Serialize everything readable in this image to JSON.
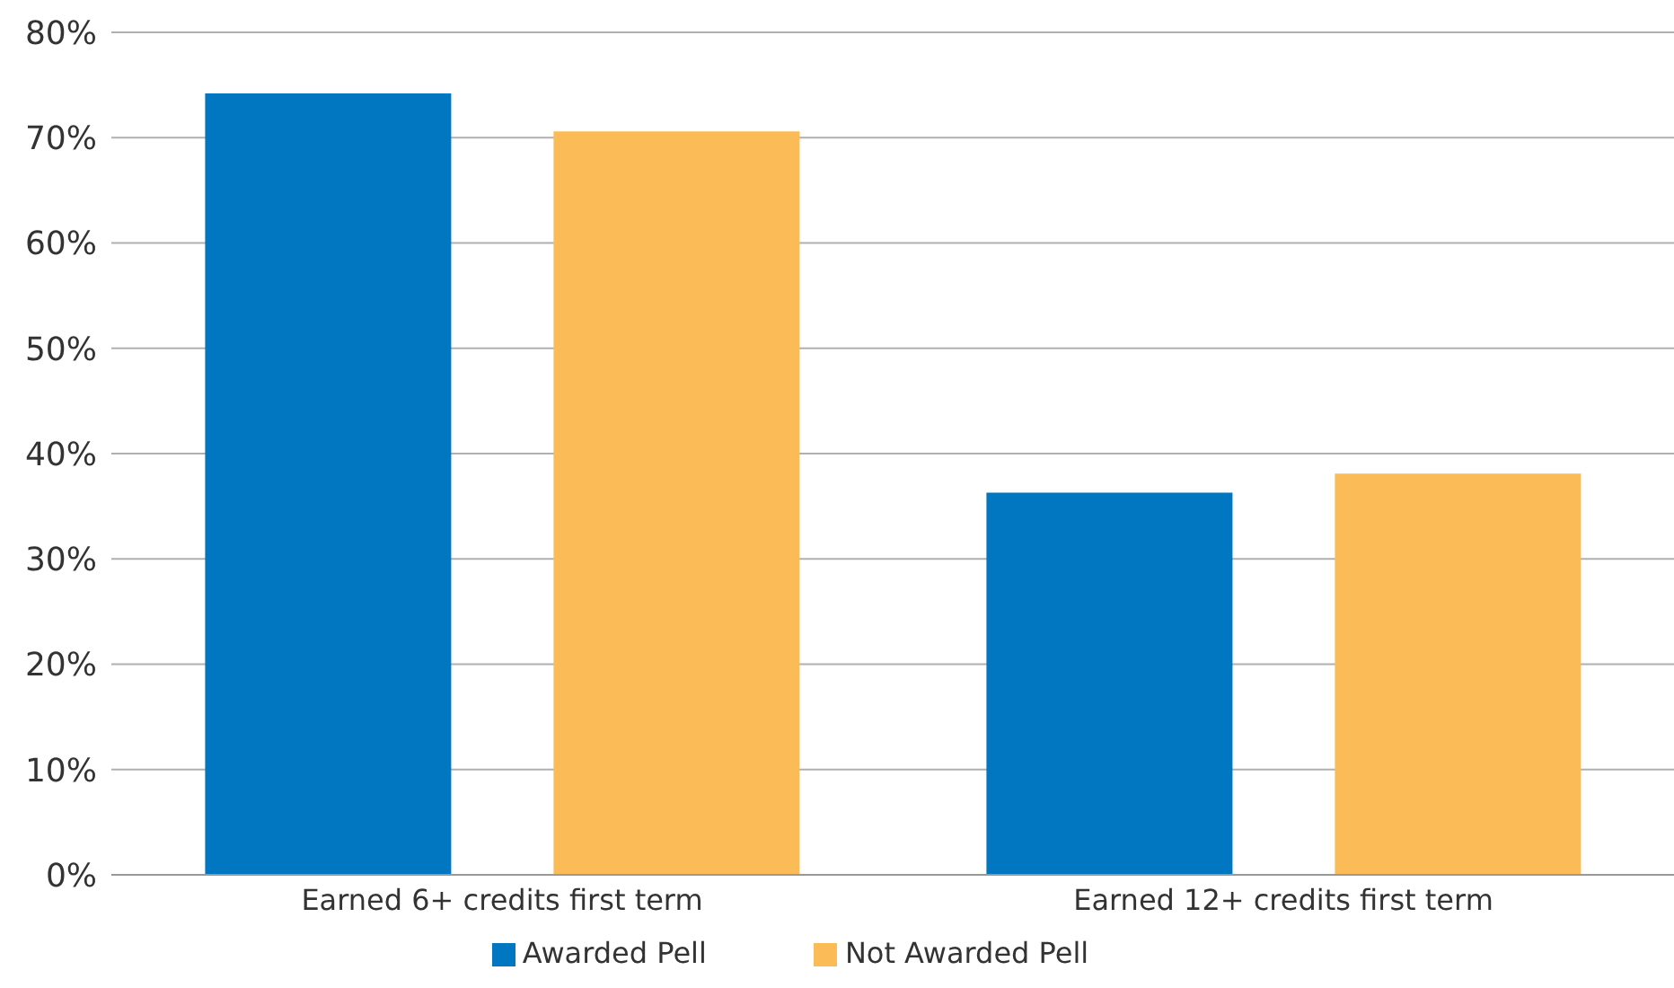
{
  "chart_data": {
    "type": "bar",
    "categories": [
      "Earned 6+ credits first term",
      "Earned 12+ credits first term"
    ],
    "series": [
      {
        "name": "Awarded Pell",
        "color": "#0077c0",
        "values": [
          74.2,
          36.3
        ]
      },
      {
        "name": "Not Awarded Pell",
        "color": "#fbbc58",
        "values": [
          70.6,
          38.1
        ]
      }
    ],
    "ylim": [
      0,
      80
    ],
    "yticks": [
      {
        "value": 0,
        "label": "0%"
      },
      {
        "value": 10,
        "label": "10%"
      },
      {
        "value": 20,
        "label": "20%"
      },
      {
        "value": 30,
        "label": "30%"
      },
      {
        "value": 40,
        "label": "40%"
      },
      {
        "value": 50,
        "label": "50%"
      },
      {
        "value": 60,
        "label": "60%"
      },
      {
        "value": 70,
        "label": "70%"
      },
      {
        "value": 80,
        "label": "80%"
      }
    ],
    "grid": "y",
    "legend": "bottom"
  }
}
